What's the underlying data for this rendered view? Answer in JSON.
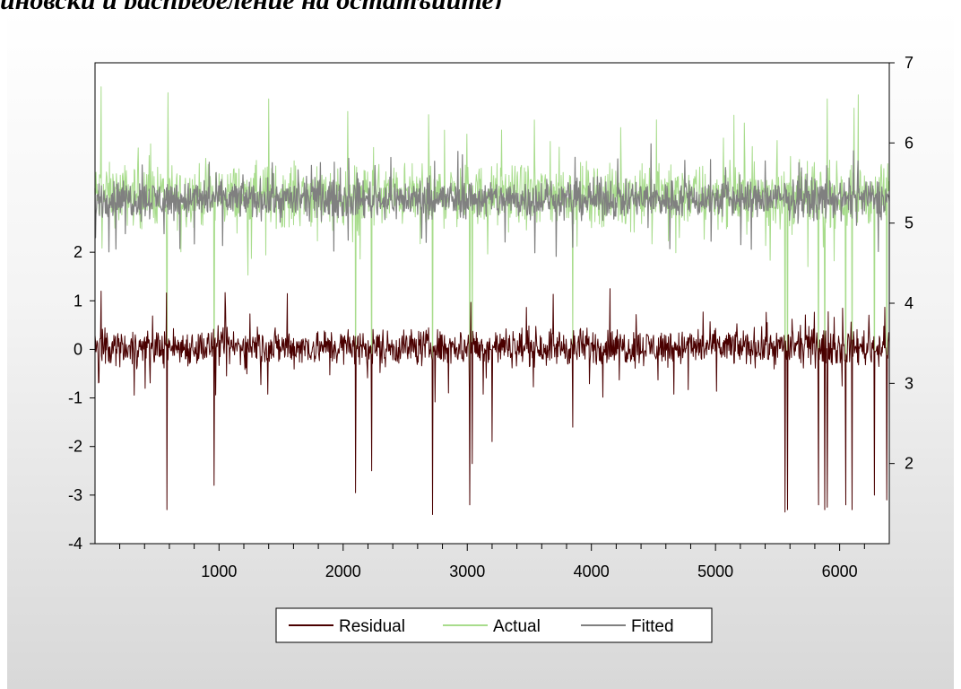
{
  "heading": "иновски и распределение на остатъците)",
  "chart_data": {
    "type": "line",
    "title": "",
    "xlabel": "",
    "x": {
      "start": 1,
      "end": 6400,
      "ticks": [
        1000,
        2000,
        3000,
        4000,
        5000,
        6000
      ]
    },
    "right_axis": {
      "ylim": [
        1.0,
        7.0
      ],
      "ticks": [
        2,
        3,
        4,
        5,
        6,
        7
      ]
    },
    "left_axis": {
      "ylim": [
        -4.0,
        5.9
      ],
      "ticks": [
        -4,
        -3,
        -2,
        -1,
        0,
        1,
        2
      ]
    },
    "series": [
      {
        "name": "Residual",
        "axis": "left",
        "color": "#4a0000",
        "typical_range": [
          -0.5,
          0.6
        ],
        "spikes": [
          {
            "x": 580,
            "y": -3.3
          },
          {
            "x": 960,
            "y": -2.8
          },
          {
            "x": 2100,
            "y": -2.95
          },
          {
            "x": 2230,
            "y": -2.5
          },
          {
            "x": 2720,
            "y": -3.4
          },
          {
            "x": 3020,
            "y": -3.2
          },
          {
            "x": 3040,
            "y": -2.35
          },
          {
            "x": 3200,
            "y": -1.9
          },
          {
            "x": 3850,
            "y": -1.6
          },
          {
            "x": 5560,
            "y": -3.35
          },
          {
            "x": 5580,
            "y": -3.3
          },
          {
            "x": 5830,
            "y": -3.2
          },
          {
            "x": 5880,
            "y": -3.3
          },
          {
            "x": 5900,
            "y": -3.25
          },
          {
            "x": 6050,
            "y": -3.2
          },
          {
            "x": 6100,
            "y": -3.3
          },
          {
            "x": 6280,
            "y": -3.0
          },
          {
            "x": 6380,
            "y": -3.1
          }
        ],
        "peaks": [
          {
            "x": 50,
            "y": 1.2
          },
          {
            "x": 1550,
            "y": 1.15
          },
          {
            "x": 4150,
            "y": 1.25
          }
        ]
      },
      {
        "name": "Actual",
        "axis": "right",
        "color": "#a8dc8c",
        "typical_range": [
          4.8,
          5.9
        ],
        "spikes": [
          {
            "x": 580,
            "y": 2.3
          },
          {
            "x": 960,
            "y": 2.3
          },
          {
            "x": 2100,
            "y": 2.3
          },
          {
            "x": 2230,
            "y": 2.3
          },
          {
            "x": 2720,
            "y": 2.3
          },
          {
            "x": 3020,
            "y": 2.3
          },
          {
            "x": 3040,
            "y": 3.1
          },
          {
            "x": 3850,
            "y": 3.3
          },
          {
            "x": 5560,
            "y": 2.3
          },
          {
            "x": 5580,
            "y": 2.3
          },
          {
            "x": 5830,
            "y": 2.3
          },
          {
            "x": 5880,
            "y": 2.3
          },
          {
            "x": 5900,
            "y": 2.3
          },
          {
            "x": 6050,
            "y": 2.3
          },
          {
            "x": 6100,
            "y": 2.3
          },
          {
            "x": 6280,
            "y": 2.3
          },
          {
            "x": 6380,
            "y": 2.3
          }
        ],
        "peaks": [
          {
            "x": 50,
            "y": 6.7
          },
          {
            "x": 1400,
            "y": 6.55
          },
          {
            "x": 5900,
            "y": 6.55
          },
          {
            "x": 6150,
            "y": 6.6
          }
        ]
      },
      {
        "name": "Fitted",
        "axis": "right",
        "color": "#808080",
        "typical_range": [
          4.95,
          5.65
        ],
        "dips": [
          {
            "x": 3850,
            "y": 4.7
          }
        ]
      }
    ],
    "legend": {
      "position": "bottom-center",
      "entries": [
        "Residual",
        "Actual",
        "Fitted"
      ]
    }
  }
}
